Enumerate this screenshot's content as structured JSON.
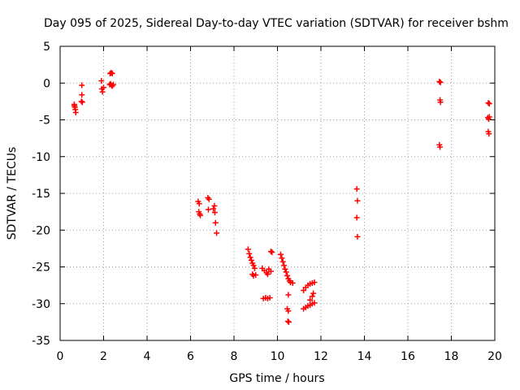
{
  "chart_data": {
    "type": "scatter",
    "title": "Day 095 of 2025, Sidereal Day-to-day VTEC variation (SDTVAR) for receiver bshm",
    "xlabel": "GPS time / hours",
    "ylabel": "SDTVAR / TECUs",
    "xlim": [
      0,
      20
    ],
    "ylim": [
      -35,
      5
    ],
    "xticks": [
      0,
      2,
      4,
      6,
      8,
      10,
      12,
      14,
      16,
      18,
      20
    ],
    "yticks": [
      5,
      0,
      -5,
      -10,
      -15,
      -20,
      -25,
      -30,
      -35
    ],
    "xtick_labels": [
      "0",
      "2",
      "4",
      "6",
      "8",
      "10",
      "12",
      "14",
      "16",
      "18",
      "20"
    ],
    "ytick_labels": [
      "5",
      "0",
      "-5",
      "-10",
      "-15",
      "-20",
      "-25",
      "-30",
      "-35"
    ],
    "grid": true,
    "marker": "plus",
    "color": "#ff0000",
    "series": [
      {
        "name": "SDTVAR",
        "points": [
          [
            0.65,
            -2.9
          ],
          [
            0.68,
            -3.3
          ],
          [
            0.7,
            -3.6
          ],
          [
            0.72,
            -4.0
          ],
          [
            0.66,
            -3.1
          ],
          [
            1.0,
            -0.3
          ],
          [
            1.0,
            -1.6
          ],
          [
            0.98,
            -2.5
          ],
          [
            1.02,
            -2.6
          ],
          [
            1.9,
            0.3
          ],
          [
            1.92,
            -0.8
          ],
          [
            1.95,
            -1.2
          ],
          [
            2.0,
            -0.6
          ],
          [
            2.3,
            1.3
          ],
          [
            2.35,
            1.4
          ],
          [
            2.4,
            1.3
          ],
          [
            2.32,
            -0.1
          ],
          [
            2.36,
            -0.3
          ],
          [
            2.4,
            -0.4
          ],
          [
            2.45,
            -0.2
          ],
          [
            2.28,
            -0.2
          ],
          [
            6.35,
            -16.1
          ],
          [
            6.4,
            -16.4
          ],
          [
            6.38,
            -17.5
          ],
          [
            6.42,
            -17.8
          ],
          [
            6.45,
            -18.0
          ],
          [
            6.8,
            -15.6
          ],
          [
            6.85,
            -15.8
          ],
          [
            6.82,
            -17.2
          ],
          [
            7.05,
            -17.1
          ],
          [
            7.1,
            -16.7
          ],
          [
            7.12,
            -17.6
          ],
          [
            7.15,
            -19.0
          ],
          [
            7.2,
            -20.4
          ],
          [
            8.65,
            -22.6
          ],
          [
            8.7,
            -23.2
          ],
          [
            8.75,
            -23.7
          ],
          [
            8.8,
            -24.1
          ],
          [
            8.85,
            -24.5
          ],
          [
            8.9,
            -24.8
          ],
          [
            8.95,
            -25.2
          ],
          [
            8.85,
            -26.0
          ],
          [
            8.9,
            -26.2
          ],
          [
            9.0,
            -26.1
          ],
          [
            9.3,
            -25.2
          ],
          [
            9.4,
            -25.5
          ],
          [
            9.5,
            -25.8
          ],
          [
            9.6,
            -25.3
          ],
          [
            9.7,
            -25.6
          ],
          [
            9.55,
            -26.0
          ],
          [
            9.35,
            -29.3
          ],
          [
            9.45,
            -29.2
          ],
          [
            9.55,
            -29.3
          ],
          [
            9.65,
            -29.2
          ],
          [
            9.7,
            -22.9
          ],
          [
            9.75,
            -23.0
          ],
          [
            10.15,
            -23.3
          ],
          [
            10.2,
            -23.8
          ],
          [
            10.25,
            -24.3
          ],
          [
            10.3,
            -24.8
          ],
          [
            10.35,
            -25.3
          ],
          [
            10.4,
            -25.7
          ],
          [
            10.45,
            -26.2
          ],
          [
            10.5,
            -26.6
          ],
          [
            10.55,
            -26.9
          ],
          [
            10.6,
            -27.1
          ],
          [
            10.7,
            -27.2
          ],
          [
            10.5,
            -28.8
          ],
          [
            10.45,
            -30.7
          ],
          [
            10.5,
            -31.0
          ],
          [
            10.48,
            -32.4
          ],
          [
            10.52,
            -32.5
          ],
          [
            11.2,
            -28.2
          ],
          [
            11.3,
            -27.8
          ],
          [
            11.4,
            -27.5
          ],
          [
            11.5,
            -27.3
          ],
          [
            11.6,
            -27.2
          ],
          [
            11.7,
            -27.1
          ],
          [
            11.2,
            -30.7
          ],
          [
            11.3,
            -30.5
          ],
          [
            11.4,
            -30.3
          ],
          [
            11.5,
            -30.2
          ],
          [
            11.6,
            -30.0
          ],
          [
            11.7,
            -29.9
          ],
          [
            11.5,
            -29.5
          ],
          [
            11.6,
            -29.0
          ],
          [
            11.65,
            -28.6
          ],
          [
            13.65,
            -14.4
          ],
          [
            13.68,
            -16.0
          ],
          [
            13.65,
            -18.3
          ],
          [
            13.68,
            -20.9
          ],
          [
            17.45,
            0.2
          ],
          [
            17.5,
            0.1
          ],
          [
            17.48,
            -2.3
          ],
          [
            17.5,
            -2.6
          ],
          [
            17.45,
            -8.4
          ],
          [
            17.48,
            -8.7
          ],
          [
            19.7,
            -2.7
          ],
          [
            19.75,
            -2.8
          ],
          [
            19.68,
            -4.7
          ],
          [
            19.72,
            -4.9
          ],
          [
            19.75,
            -4.6
          ],
          [
            19.7,
            -6.6
          ],
          [
            19.73,
            -6.9
          ]
        ]
      }
    ]
  }
}
